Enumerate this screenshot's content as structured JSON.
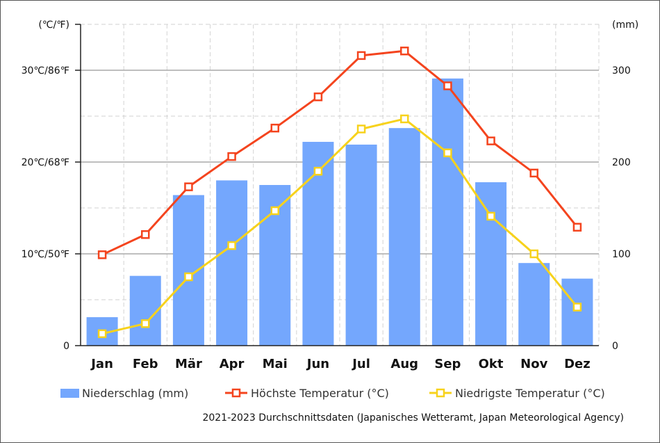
{
  "chart_data": {
    "type": "bar",
    "categories": [
      "Jan",
      "Feb",
      "Mär",
      "Apr",
      "Mai",
      "Jun",
      "Jul",
      "Aug",
      "Sep",
      "Okt",
      "Nov",
      "Dez"
    ],
    "series": [
      {
        "name": "Niederschlag (mm)",
        "type": "bar",
        "axis": "right",
        "color": "#74a7fd",
        "values": [
          31,
          76,
          164,
          180,
          175,
          222,
          219,
          237,
          291,
          178,
          90,
          73
        ]
      },
      {
        "name": "Höchste Temperatur (°C)",
        "type": "line",
        "axis": "left",
        "color": "#f4441e",
        "values": [
          9.9,
          12.1,
          17.3,
          20.6,
          23.7,
          27.1,
          31.6,
          32.1,
          28.3,
          22.3,
          18.8,
          12.9
        ]
      },
      {
        "name": "Niedrigste Temperatur (°C)",
        "type": "line",
        "axis": "left",
        "color": "#f7d21c",
        "values": [
          1.3,
          2.4,
          7.5,
          10.9,
          14.7,
          19.0,
          23.6,
          24.7,
          21.0,
          14.1,
          10.0,
          4.2
        ]
      }
    ],
    "left_axis": {
      "unit_label": "(℃/℉)",
      "min": 0,
      "max": 35,
      "tick_labels": [
        {
          "value": 0,
          "label": "0"
        },
        {
          "value": 10,
          "label": "10℃/50℉"
        },
        {
          "value": 20,
          "label": "20℃/68℉"
        },
        {
          "value": 30,
          "label": "30℃/86℉"
        }
      ]
    },
    "right_axis": {
      "unit_label": "(mm)",
      "min": 0,
      "max": 350,
      "tick_labels": [
        {
          "value": 0,
          "label": "0"
        },
        {
          "value": 100,
          "label": "100"
        },
        {
          "value": 200,
          "label": "200"
        },
        {
          "value": 300,
          "label": "300"
        }
      ]
    },
    "grid": true,
    "legend_position": "bottom",
    "legend": [
      {
        "label": "Niederschlag (mm)"
      },
      {
        "label": "Höchste Temperatur (°C)"
      },
      {
        "label": "Niedrigste Temperatur (°C)"
      }
    ],
    "note": "2021-2023 Durchschnittsdaten (Japanisches Wetteramt, Japan Meteorological Agency)"
  }
}
